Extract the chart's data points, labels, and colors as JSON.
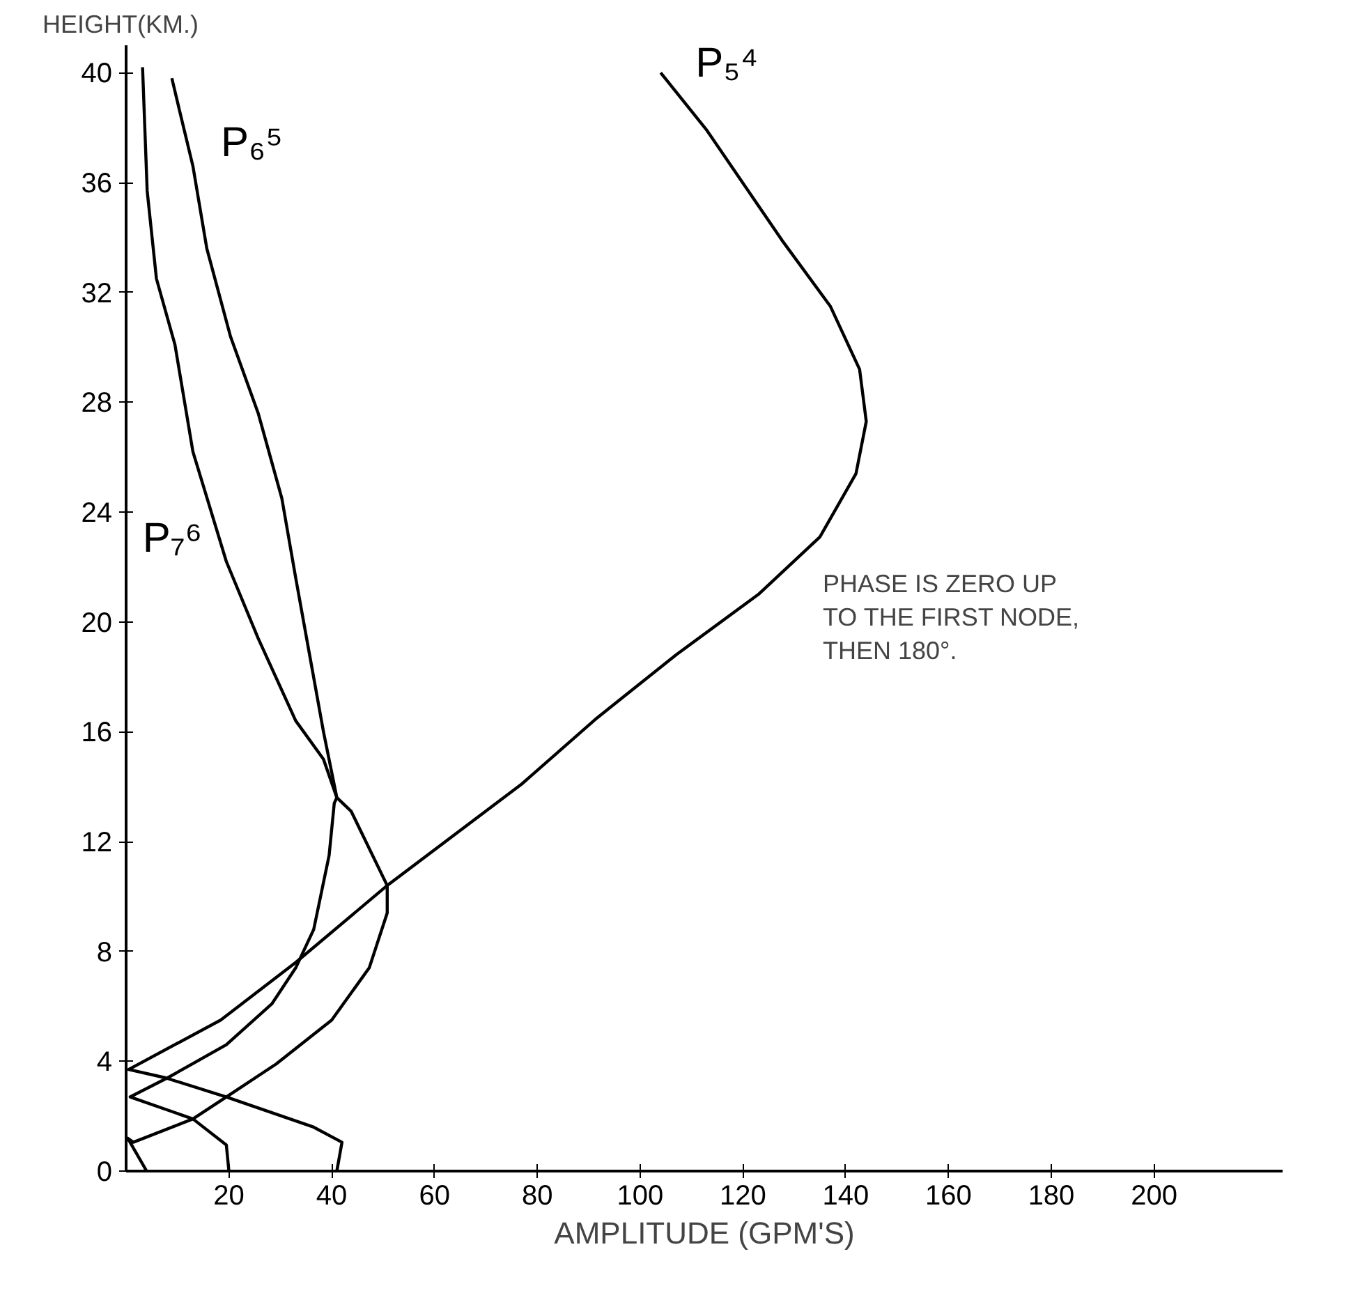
{
  "chart_data": {
    "type": "line",
    "xlabel": "AMPLITUDE (GPM'S)",
    "ylabel": "HEIGHT(KM.)",
    "xlim": [
      0,
      225
    ],
    "ylim": [
      0,
      41
    ],
    "xticks": [
      20,
      40,
      60,
      80,
      100,
      120,
      140,
      160,
      180,
      200
    ],
    "yticks": [
      0,
      4,
      8,
      12,
      16,
      20,
      24,
      28,
      32,
      36,
      40
    ],
    "annotations": [
      "PHASE IS ZERO UP\nTO THE FIRST NODE,\nTHEN 180°."
    ],
    "series": [
      {
        "name": "P₅⁴",
        "color": "#000000",
        "x": [
          104,
          113,
          127.6,
          137,
          142.7,
          144,
          142,
          135,
          123,
          107,
          91.6,
          77,
          50.8,
          33,
          18.4,
          0.5,
          7.6,
          19.5,
          36.5,
          42,
          41
        ],
        "values": [
          40,
          37.9,
          33.9,
          31.5,
          29.2,
          27.3,
          25.4,
          23.1,
          21,
          18.8,
          16.5,
          14.1,
          10.4,
          7.6,
          5.5,
          3.7,
          3.4,
          2.7,
          1.6,
          1.05,
          0
        ]
      },
      {
        "name": "P₆⁵",
        "color": "#000000",
        "x": [
          8.9,
          10.3,
          13,
          15.7,
          20.3,
          25.7,
          30.3,
          33,
          35.7,
          38.4,
          41,
          40.5,
          39.5,
          36.5,
          33,
          28.4,
          19.5,
          8.1,
          0.8,
          13,
          19.5,
          20
        ],
        "values": [
          39.8,
          38.7,
          36.6,
          33.6,
          30.4,
          27.6,
          24.5,
          21.6,
          18.8,
          16,
          13.6,
          13.4,
          11.5,
          8.8,
          7.4,
          6.1,
          4.6,
          3.4,
          2.7,
          1.9,
          0.95,
          0
        ]
      },
      {
        "name": "P₇⁶",
        "color": "#000000",
        "x": [
          3.2,
          4.1,
          5.9,
          9.5,
          13,
          19.5,
          25.7,
          33,
          38.4,
          41,
          43.8,
          50.8,
          50.8,
          47.3,
          40,
          29.2,
          19.5,
          13,
          1.4,
          0.3,
          4
        ],
        "values": [
          40.2,
          35.7,
          32.5,
          30.1,
          26.2,
          22.2,
          19.4,
          16.4,
          15,
          13.6,
          13.1,
          10.4,
          9.4,
          7.4,
          5.5,
          3.9,
          2.7,
          1.9,
          1.05,
          1.2,
          0
        ]
      }
    ]
  }
}
